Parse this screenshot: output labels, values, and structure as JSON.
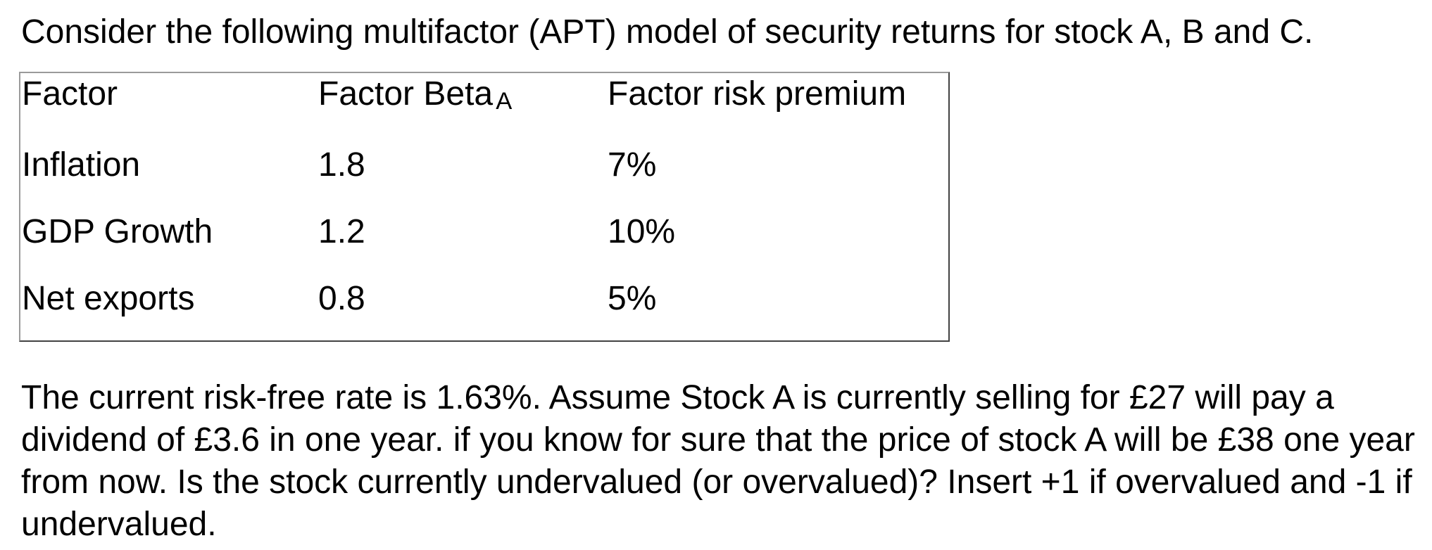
{
  "intro": "Consider the following multifactor (APT) model of security returns for stock A, B and C.",
  "table": {
    "headers": {
      "factor": "Factor",
      "beta": "Factor Beta",
      "beta_subscript": "A",
      "premium": "Factor risk premium"
    },
    "rows": [
      {
        "factor": "Inflation",
        "beta": "1.8",
        "premium": "7%"
      },
      {
        "factor": "GDP Growth",
        "beta": "1.2",
        "premium": "10%"
      },
      {
        "factor": "Net exports",
        "beta": "0.8",
        "premium": "5%"
      }
    ]
  },
  "body_lines": [
    "The current risk-free rate is 1.63%. Assume Stock A is currently selling for £27 will pay a",
    "dividend of £3.6 in one year. if you know for sure that the price of stock A will be £38 one year",
    "from now. Is the stock currently undervalued (or overvalued)? Insert +1 if overvalued and -1 if",
    "undervalued."
  ],
  "key_figures": {
    "risk_free_rate": "1.63%",
    "current_price": "£27",
    "dividend": "£3.6",
    "future_price": "£38",
    "insert_if_overvalued": "+1",
    "insert_if_undervalued": "-1"
  },
  "colors": {
    "text": "#000000",
    "background": "#ffffff",
    "table_border_light": "#9a9a9a",
    "table_border_dark": "#424242"
  }
}
